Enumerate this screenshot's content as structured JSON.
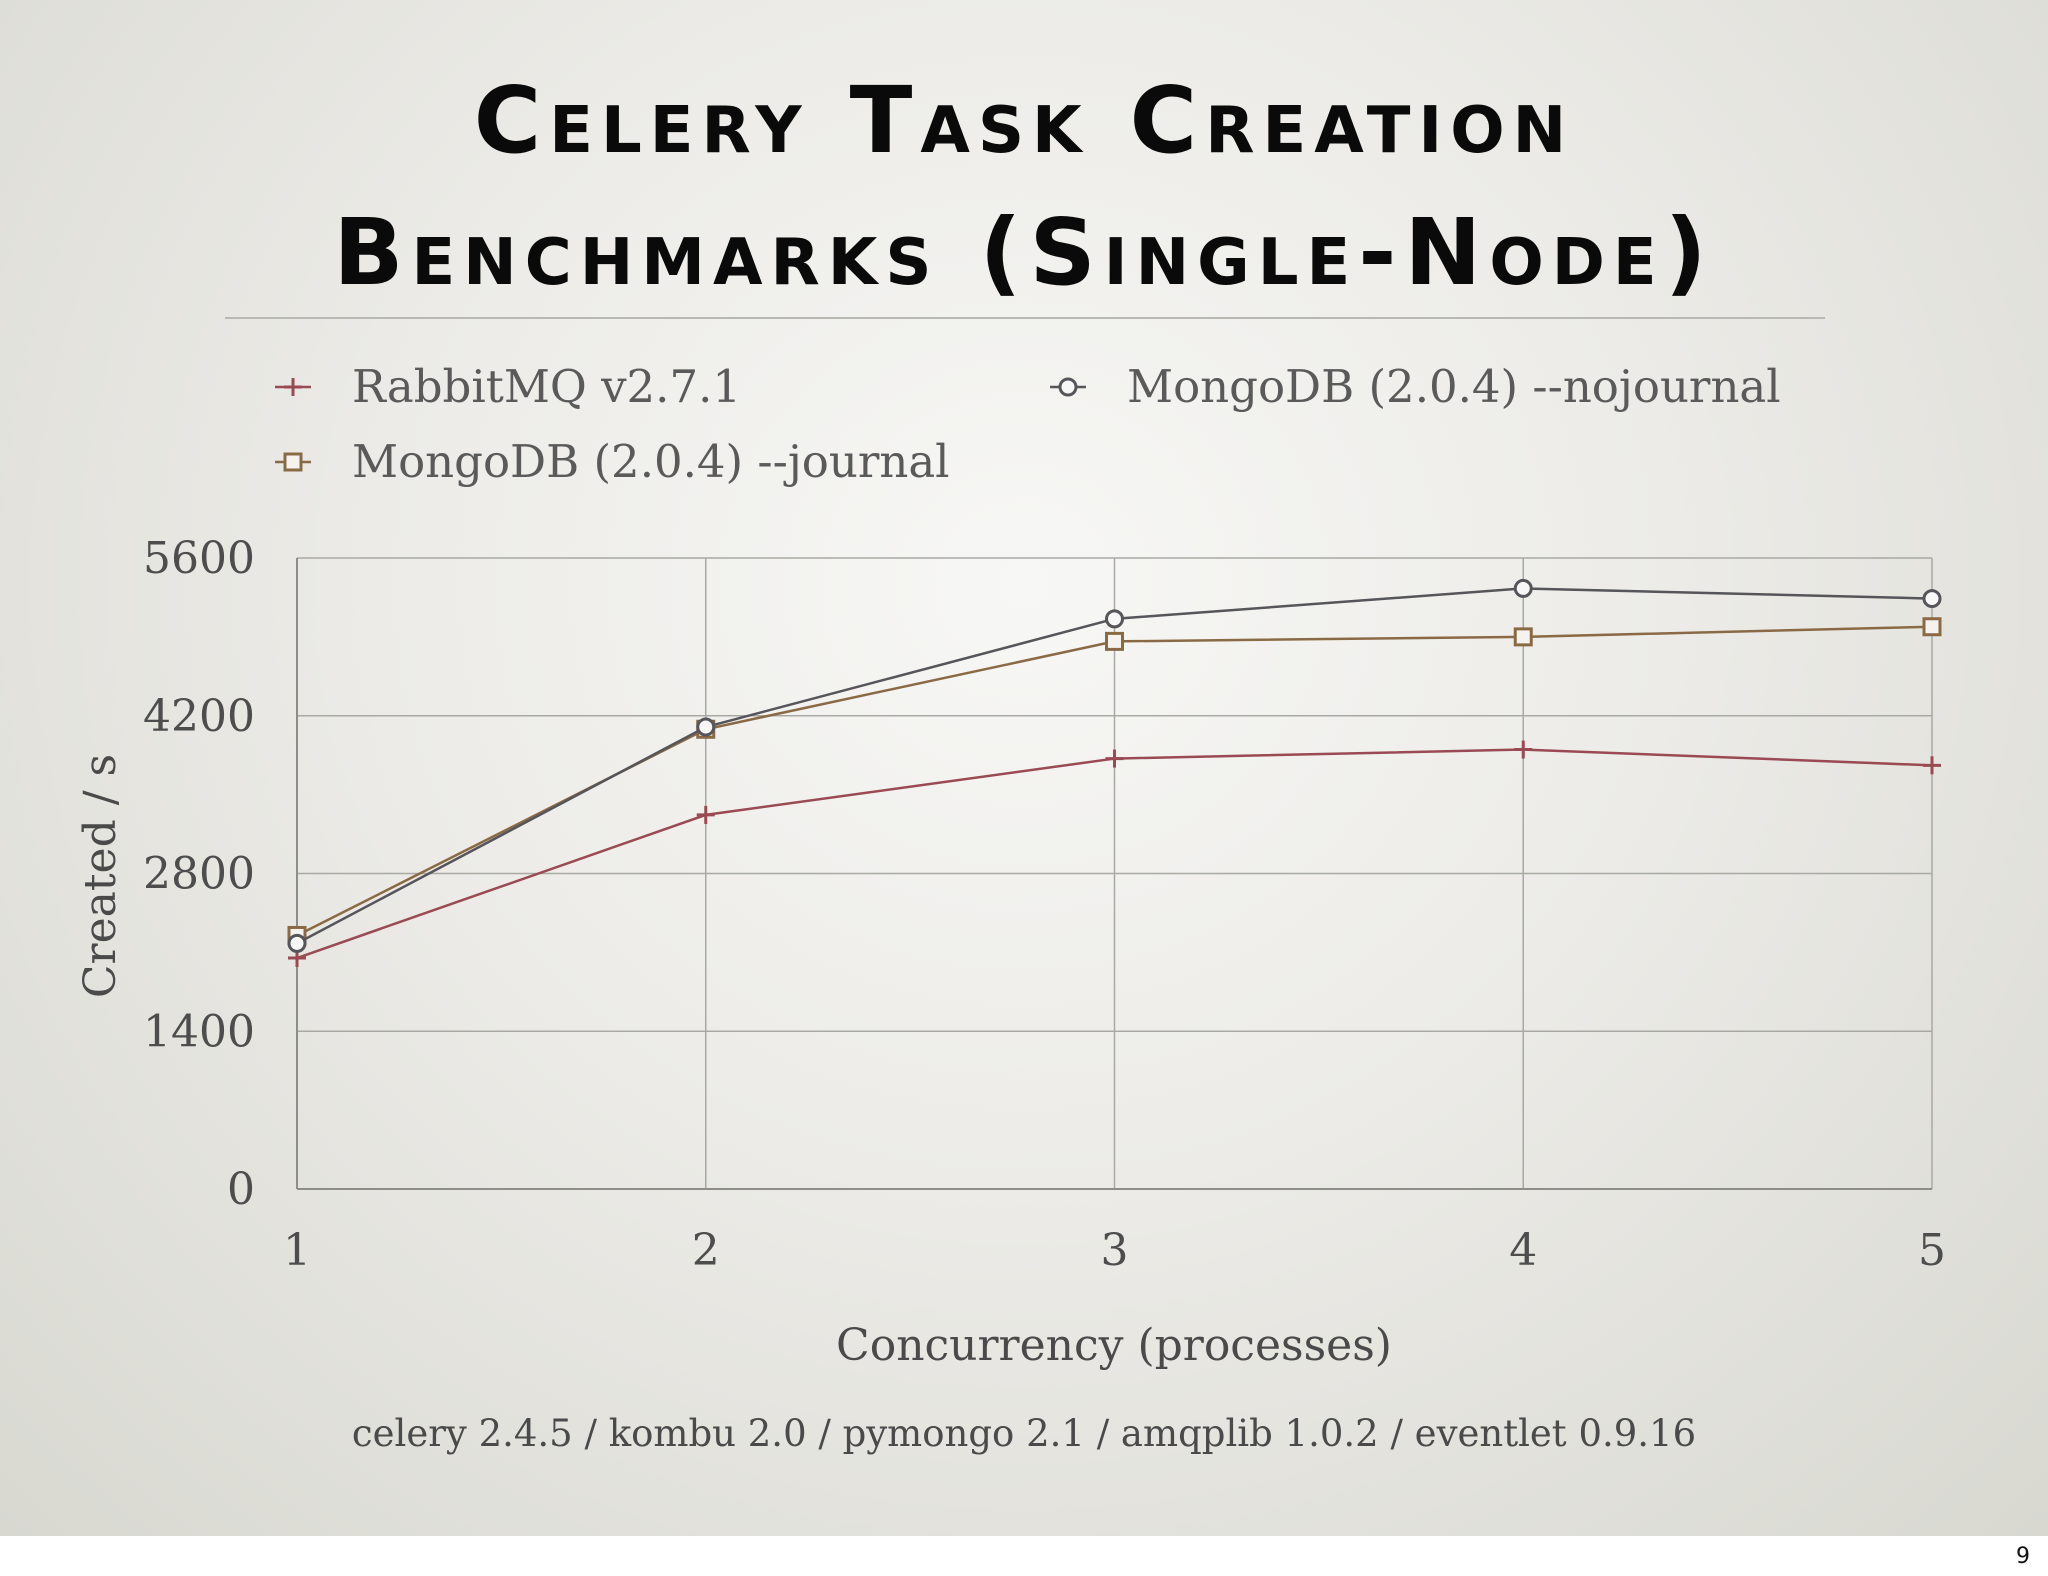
{
  "slide": {
    "title_lines": [
      "Celery Task Creation",
      "Benchmarks (Single-Node)"
    ],
    "footnote": "celery 2.4.5 / kombu 2.0 / pymongo 2.1 / amqplib 1.0.2 / eventlet 0.9.16",
    "page_number": "9"
  },
  "chart_data": {
    "type": "line",
    "xlabel": "Concurrency (processes)",
    "ylabel": "Created / s",
    "x": [
      1,
      2,
      3,
      4,
      5
    ],
    "xlim": [
      1,
      5
    ],
    "ylim": [
      0,
      5600
    ],
    "yticks": [
      0,
      1400,
      2800,
      4200,
      5600
    ],
    "grid": true,
    "legend_position": "top",
    "series": [
      {
        "name": "RabbitMQ v2.7.1",
        "marker": "plus",
        "color": "#9a4a52",
        "values": [
          2050,
          3320,
          3820,
          3900,
          3760
        ]
      },
      {
        "name": "MongoDB (2.0.4) --journal",
        "marker": "square",
        "color": "#8a6a45",
        "values": [
          2250,
          4080,
          4860,
          4900,
          4990
        ]
      },
      {
        "name": "MongoDB (2.0.4) --nojournal",
        "marker": "circle",
        "color": "#55555a",
        "values": [
          2180,
          4100,
          5060,
          5330,
          5240
        ]
      }
    ]
  }
}
